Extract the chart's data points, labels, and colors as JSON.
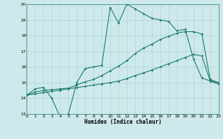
{
  "xlabel": "Humidex (Indice chaleur)",
  "bg_color": "#cee9eb",
  "grid_color": "#aed4d6",
  "line_color": "#1a7a6e",
  "spine_color": "#1a7a6e",
  "series1_x": [
    0,
    1,
    2,
    3,
    4,
    5,
    6,
    7,
    8,
    9,
    10,
    11,
    12,
    13,
    14,
    15,
    16,
    17,
    18,
    19,
    20,
    21,
    22,
    23
  ],
  "series1_y": [
    14.2,
    14.6,
    14.7,
    14.0,
    12.8,
    13.0,
    15.0,
    15.9,
    16.0,
    16.1,
    19.8,
    18.8,
    20.0,
    19.7,
    19.4,
    19.1,
    19.0,
    18.9,
    18.3,
    18.4,
    16.5,
    15.3,
    15.1,
    15.0
  ],
  "series2_x": [
    0,
    1,
    2,
    3,
    4,
    5,
    6,
    7,
    8,
    9,
    10,
    11,
    12,
    13,
    14,
    15,
    16,
    17,
    18,
    19,
    20,
    21,
    22,
    23
  ],
  "series2_y": [
    14.2,
    14.4,
    14.5,
    14.55,
    14.6,
    14.65,
    14.85,
    15.05,
    15.2,
    15.45,
    15.75,
    16.05,
    16.4,
    16.85,
    17.2,
    17.45,
    17.75,
    17.95,
    18.15,
    18.25,
    18.25,
    18.1,
    15.2,
    15.0
  ],
  "series3_x": [
    0,
    1,
    2,
    3,
    4,
    5,
    6,
    7,
    8,
    9,
    10,
    11,
    12,
    13,
    14,
    15,
    16,
    17,
    18,
    19,
    20,
    21,
    22,
    23
  ],
  "series3_y": [
    14.2,
    14.28,
    14.36,
    14.44,
    14.52,
    14.6,
    14.68,
    14.76,
    14.84,
    14.92,
    15.0,
    15.1,
    15.25,
    15.45,
    15.62,
    15.8,
    16.0,
    16.2,
    16.4,
    16.6,
    16.8,
    16.7,
    15.1,
    14.9
  ],
  "xlim": [
    0,
    23
  ],
  "ylim": [
    13,
    20
  ],
  "xticks": [
    0,
    1,
    2,
    3,
    4,
    5,
    6,
    7,
    8,
    9,
    10,
    11,
    12,
    13,
    14,
    15,
    16,
    17,
    18,
    19,
    20,
    21,
    22,
    23
  ],
  "yticks": [
    13,
    14,
    15,
    16,
    17,
    18,
    19,
    20
  ],
  "marker": "D",
  "markersize": 1.8,
  "linewidth": 0.8
}
